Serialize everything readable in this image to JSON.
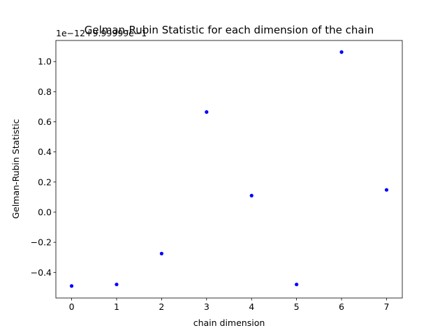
{
  "chart_data": {
    "type": "scatter",
    "title": "Gelman-Rubin Statistic for each dimension of the chain",
    "xlabel": "chain dimension",
    "ylabel": "Gelman-Rubin Statistic",
    "offset_label": "1e−12+9.99999e−1",
    "xlim": [
      -0.35,
      7.35
    ],
    "ylim": [
      -0.57,
      1.14
    ],
    "xticks": [
      0,
      1,
      2,
      3,
      4,
      5,
      6,
      7
    ],
    "yticks": [
      -0.4,
      -0.2,
      0.0,
      0.2,
      0.4,
      0.6,
      0.8,
      1.0
    ],
    "ytick_labels": [
      "−0.4",
      "−0.2",
      "0.0",
      "0.2",
      "0.4",
      "0.6",
      "0.8",
      "1.0"
    ],
    "grid": false,
    "marker_color": "#0000ff",
    "series": [
      {
        "x": [
          0,
          1,
          2,
          3,
          4,
          5,
          6,
          7
        ],
        "values": [
          -0.49,
          -0.48,
          -0.275,
          0.665,
          0.11,
          -0.48,
          1.063,
          0.148
        ]
      }
    ]
  }
}
